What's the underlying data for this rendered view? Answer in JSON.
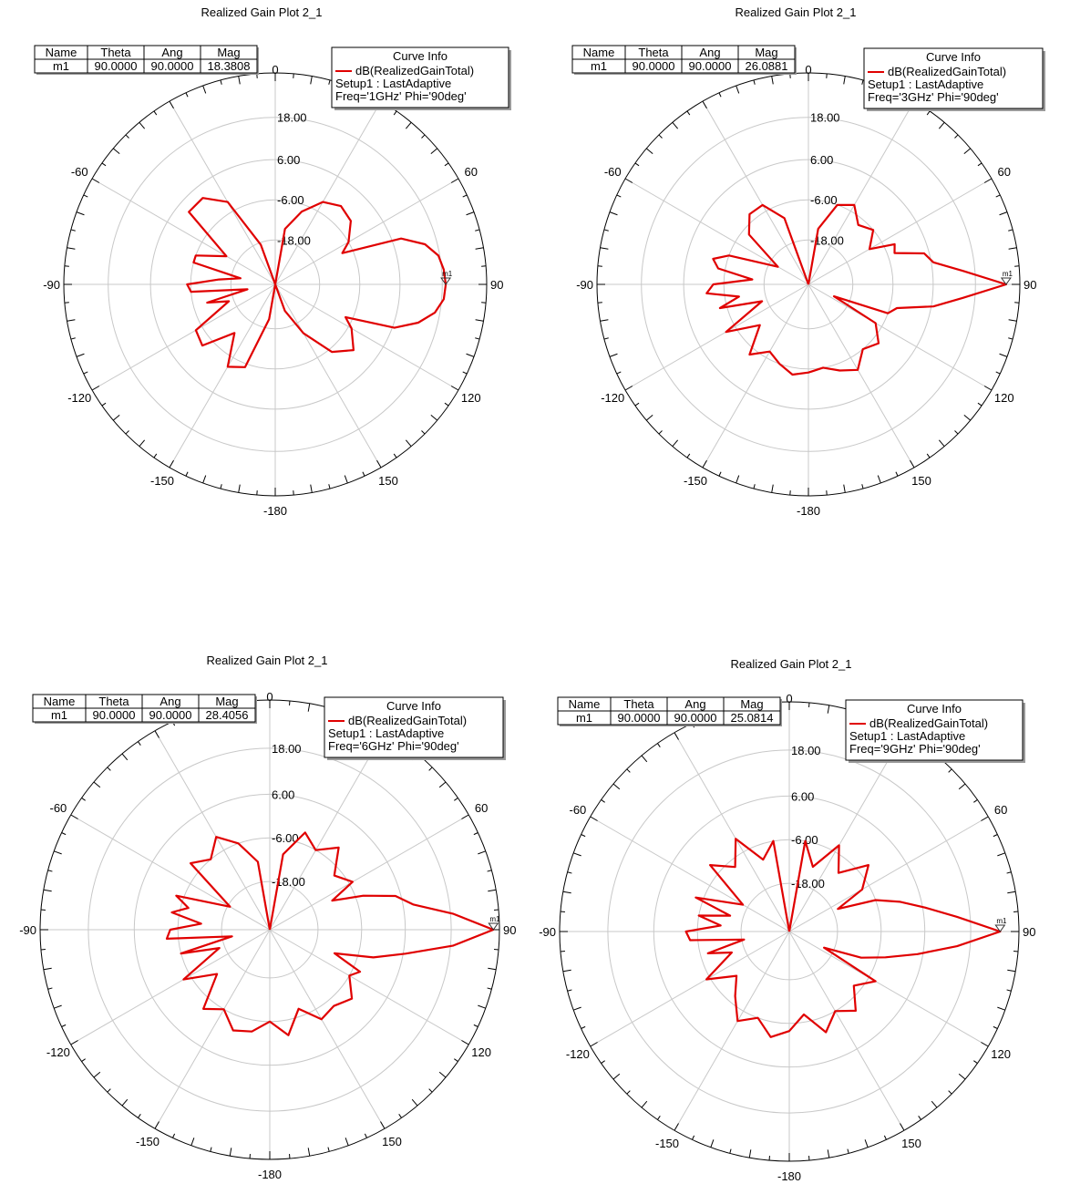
{
  "chart_data": [
    {
      "type": "polar",
      "title": "Realized Gain Plot 2_1",
      "radial_ticks": [
        "18.00",
        "6.00",
        "-6.00",
        "-18.00"
      ],
      "rlim": [
        -30,
        30
      ],
      "angle_labels": [
        "0",
        "60",
        "90",
        "120",
        "150",
        "-180",
        "-150",
        "-120",
        "-90",
        "-60"
      ],
      "marker_table": {
        "headers": [
          "Name",
          "Theta",
          "Ang",
          "Mag"
        ],
        "row": [
          "m1",
          "90.0000",
          "90.0000",
          "18.3808"
        ]
      },
      "legend": {
        "title": "Curve Info",
        "lines": [
          "dB(RealizedGainTotal)",
          "Setup1 : LastAdaptive",
          "Freq='1GHz' Phi='90deg'"
        ]
      },
      "marker": {
        "label": "m1",
        "theta": 90,
        "value": 18.38
      },
      "series": [
        {
          "name": "dB(RealizedGainTotal)",
          "color": "#e00000",
          "theta": [
            0,
            10,
            20,
            30,
            40,
            50,
            60,
            65,
            70,
            75,
            80,
            85,
            90,
            95,
            100,
            105,
            110,
            115,
            120,
            130,
            140,
            150,
            160,
            170,
            180,
            190,
            200,
            210,
            220,
            230,
            240,
            250,
            255,
            260,
            265,
            270,
            275,
            280,
            285,
            290,
            300,
            310,
            320,
            330,
            340,
            350,
            360
          ],
          "values": [
            -30,
            -14,
            -8,
            -3,
            -1,
            -2,
            -6,
            -9,
            8,
            14,
            17,
            18,
            18.4,
            18,
            16,
            12,
            6,
            -8,
            -5,
            -1,
            -5,
            -14,
            -22,
            -30,
            -30,
            -20,
            -5,
            -3,
            -12,
            -3,
            -4,
            -16,
            -10,
            -22,
            -6,
            -5,
            -14,
            -20,
            -6,
            -6,
            -14,
            2,
            2,
            -3,
            -18,
            -30,
            -30
          ]
        }
      ]
    },
    {
      "type": "polar",
      "title": "Realized Gain Plot 2_1",
      "radial_ticks": [
        "18.00",
        "6.00",
        "-6.00",
        "-18.00"
      ],
      "rlim": [
        -30,
        30
      ],
      "angle_labels": [
        "0",
        "60",
        "90",
        "120",
        "150",
        "-180",
        "-150",
        "-120",
        "-90",
        "-60"
      ],
      "marker_table": {
        "headers": [
          "Name",
          "Theta",
          "Ang",
          "Mag"
        ],
        "row": [
          "m1",
          "90.0000",
          "90.0000",
          "26.0881"
        ]
      },
      "legend": {
        "title": "Curve Info",
        "lines": [
          "dB(RealizedGainTotal)",
          "Setup1 : LastAdaptive",
          "Freq='3GHz' Phi='90deg'"
        ]
      },
      "marker": {
        "label": "m1",
        "theta": 90,
        "value": 26.09
      },
      "series": [
        {
          "name": "dB(RealizedGainTotal)",
          "color": "#e00000",
          "theta": [
            0,
            10,
            20,
            30,
            40,
            50,
            60,
            65,
            70,
            75,
            80,
            85,
            90,
            95,
            100,
            105,
            110,
            115,
            120,
            130,
            140,
            150,
            160,
            170,
            180,
            190,
            200,
            210,
            220,
            230,
            240,
            250,
            255,
            260,
            265,
            270,
            275,
            280,
            285,
            290,
            300,
            310,
            320,
            330,
            340,
            350,
            360
          ],
          "values": [
            -30,
            -14,
            -6,
            -4,
            -8,
            -6,
            -10,
            -3,
            -4,
            4,
            6,
            14,
            26.1,
            14,
            6,
            -4,
            -6,
            -22,
            -8,
            -4,
            -6,
            -2,
            -4,
            -6,
            -5,
            -4,
            -6,
            -8,
            -4,
            -12,
            -3,
            -16,
            -4,
            -10,
            -1,
            -3,
            -14,
            -4,
            -2,
            -6,
            -20,
            -8,
            -4,
            -4,
            -10,
            -30,
            -30
          ]
        }
      ]
    },
    {
      "type": "polar",
      "title": "Realized Gain Plot 2_1",
      "radial_ticks": [
        "18.00",
        "6.00",
        "-6.00",
        "-18.00"
      ],
      "rlim": [
        -30,
        30
      ],
      "angle_labels": [
        "0",
        "60",
        "90",
        "120",
        "150",
        "-180",
        "-150",
        "-120",
        "-90",
        "-60"
      ],
      "marker_table": {
        "headers": [
          "Name",
          "Theta",
          "Ang",
          "Mag"
        ],
        "row": [
          "m1",
          "90.0000",
          "90.0000",
          "28.4056"
        ]
      },
      "legend": {
        "title": "Curve Info",
        "lines": [
          "dB(RealizedGainTotal)",
          "Setup1 : LastAdaptive",
          "Freq='6GHz' Phi='90deg'"
        ]
      },
      "marker": {
        "label": "m1",
        "theta": 90,
        "value": 28.41
      },
      "series": [
        {
          "name": "dB(RealizedGainTotal)",
          "color": "#e00000",
          "theta": [
            0,
            10,
            20,
            30,
            40,
            50,
            60,
            65,
            70,
            75,
            80,
            85,
            90,
            95,
            100,
            105,
            110,
            115,
            120,
            130,
            140,
            150,
            160,
            170,
            180,
            190,
            200,
            210,
            220,
            230,
            240,
            250,
            255,
            260,
            265,
            270,
            275,
            280,
            285,
            290,
            300,
            310,
            320,
            330,
            340,
            350,
            360
          ],
          "values": [
            -30,
            -10,
            -3,
            -6,
            -2,
            -8,
            -5,
            -12,
            -4,
            4,
            8,
            18,
            28.4,
            18,
            6,
            -2,
            -12,
            -4,
            -6,
            -2,
            -4,
            -3,
            -8,
            -2,
            -6,
            -3,
            -2,
            -6,
            -3,
            -12,
            -4,
            -16,
            -6,
            -20,
            -3,
            -4,
            -12,
            -4,
            -8,
            -4,
            -18,
            -3,
            -6,
            -2,
            -6,
            -12,
            -30
          ]
        }
      ]
    },
    {
      "type": "polar",
      "title": "Realized Gain Plot 2_1",
      "radial_ticks": [
        "18.00",
        "6.00",
        "-6.00",
        "-18.00"
      ],
      "rlim": [
        -30,
        30
      ],
      "angle_labels": [
        "0",
        "60",
        "90",
        "120",
        "150",
        "-180",
        "-150",
        "-120",
        "-90",
        "-60"
      ],
      "marker_table": {
        "headers": [
          "Name",
          "Theta",
          "Ang",
          "Mag"
        ],
        "row": [
          "m1",
          "90.0000",
          "90.0000",
          "25.0814"
        ]
      },
      "legend": {
        "title": "Curve Info",
        "lines": [
          "dB(RealizedGainTotal)",
          "Setup1 : LastAdaptive",
          "Freq='9GHz' Phi='90deg'"
        ]
      },
      "marker": {
        "label": "m1",
        "theta": 90,
        "value": 25.08
      },
      "series": [
        {
          "name": "dB(RealizedGainTotal)",
          "color": "#e00000",
          "theta": [
            0,
            10,
            20,
            30,
            40,
            50,
            60,
            65,
            70,
            75,
            80,
            85,
            90,
            95,
            100,
            105,
            110,
            115,
            120,
            130,
            140,
            150,
            160,
            170,
            180,
            190,
            200,
            210,
            220,
            230,
            240,
            250,
            255,
            260,
            265,
            270,
            275,
            280,
            285,
            290,
            300,
            310,
            320,
            330,
            340,
            350,
            360
          ],
          "values": [
            -30,
            -6,
            -12,
            -4,
            -10,
            -3,
            -8,
            -16,
            -6,
            0,
            6,
            14,
            25.1,
            14,
            4,
            -4,
            -10,
            -20,
            -4,
            -8,
            -3,
            -6,
            -2,
            -8,
            -4,
            -2,
            -6,
            -3,
            -8,
            -12,
            -5,
            -14,
            -8,
            -18,
            -4,
            -3,
            -12,
            -6,
            -14,
            -4,
            -16,
            -3,
            -8,
            -2,
            -10,
            -6,
            -30
          ]
        }
      ]
    }
  ]
}
